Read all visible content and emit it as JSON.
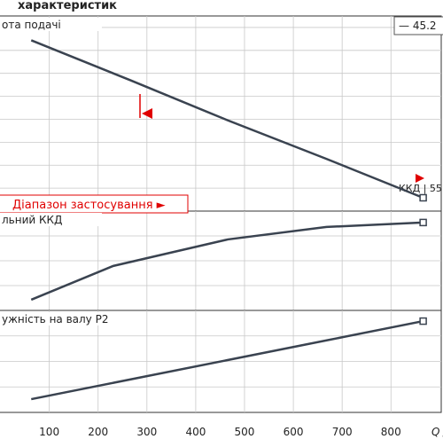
{
  "chart_data": [
    {
      "type": "line",
      "title": "характеристик",
      "label": "ота подачі",
      "legend": "— 45.2",
      "annotation": "ККД | 55",
      "range_label": "Діапазон застосування ►",
      "x": [
        63,
        266,
        466,
        666,
        866
      ],
      "series": [
        {
          "color": "#3a4350",
          "values": [
            7.44,
            5.7,
            3.95,
            2.29,
            0.58
          ]
        }
      ],
      "xlim": [
        -1,
        903
      ],
      "ylim": [
        0,
        8.5
      ],
      "ygrid": [
        1,
        2,
        3,
        4,
        5,
        6,
        7,
        8
      ]
    },
    {
      "type": "line",
      "label": "льний ККД",
      "x": [
        63,
        231,
        466,
        668,
        866
      ],
      "series": [
        {
          "color": "#3a4350",
          "values": [
            0.43,
            1.79,
            2.86,
            3.36,
            3.54
          ]
        }
      ],
      "xlim": [
        -1,
        903
      ],
      "ylim": [
        0,
        4
      ],
      "ygrid": [
        1,
        2,
        3
      ]
    },
    {
      "type": "line",
      "label": "ужність на валу P2",
      "x": [
        63,
        866
      ],
      "series": [
        {
          "color": "#3a4350",
          "values": [
            0.52,
            3.58
          ]
        }
      ],
      "xlim": [
        -1,
        903
      ],
      "ylim": [
        0,
        4
      ],
      "ygrid": [
        1,
        2,
        3
      ],
      "xticks": [
        100,
        200,
        300,
        400,
        500,
        600,
        700,
        800
      ],
      "xlabel": "Q /"
    }
  ]
}
